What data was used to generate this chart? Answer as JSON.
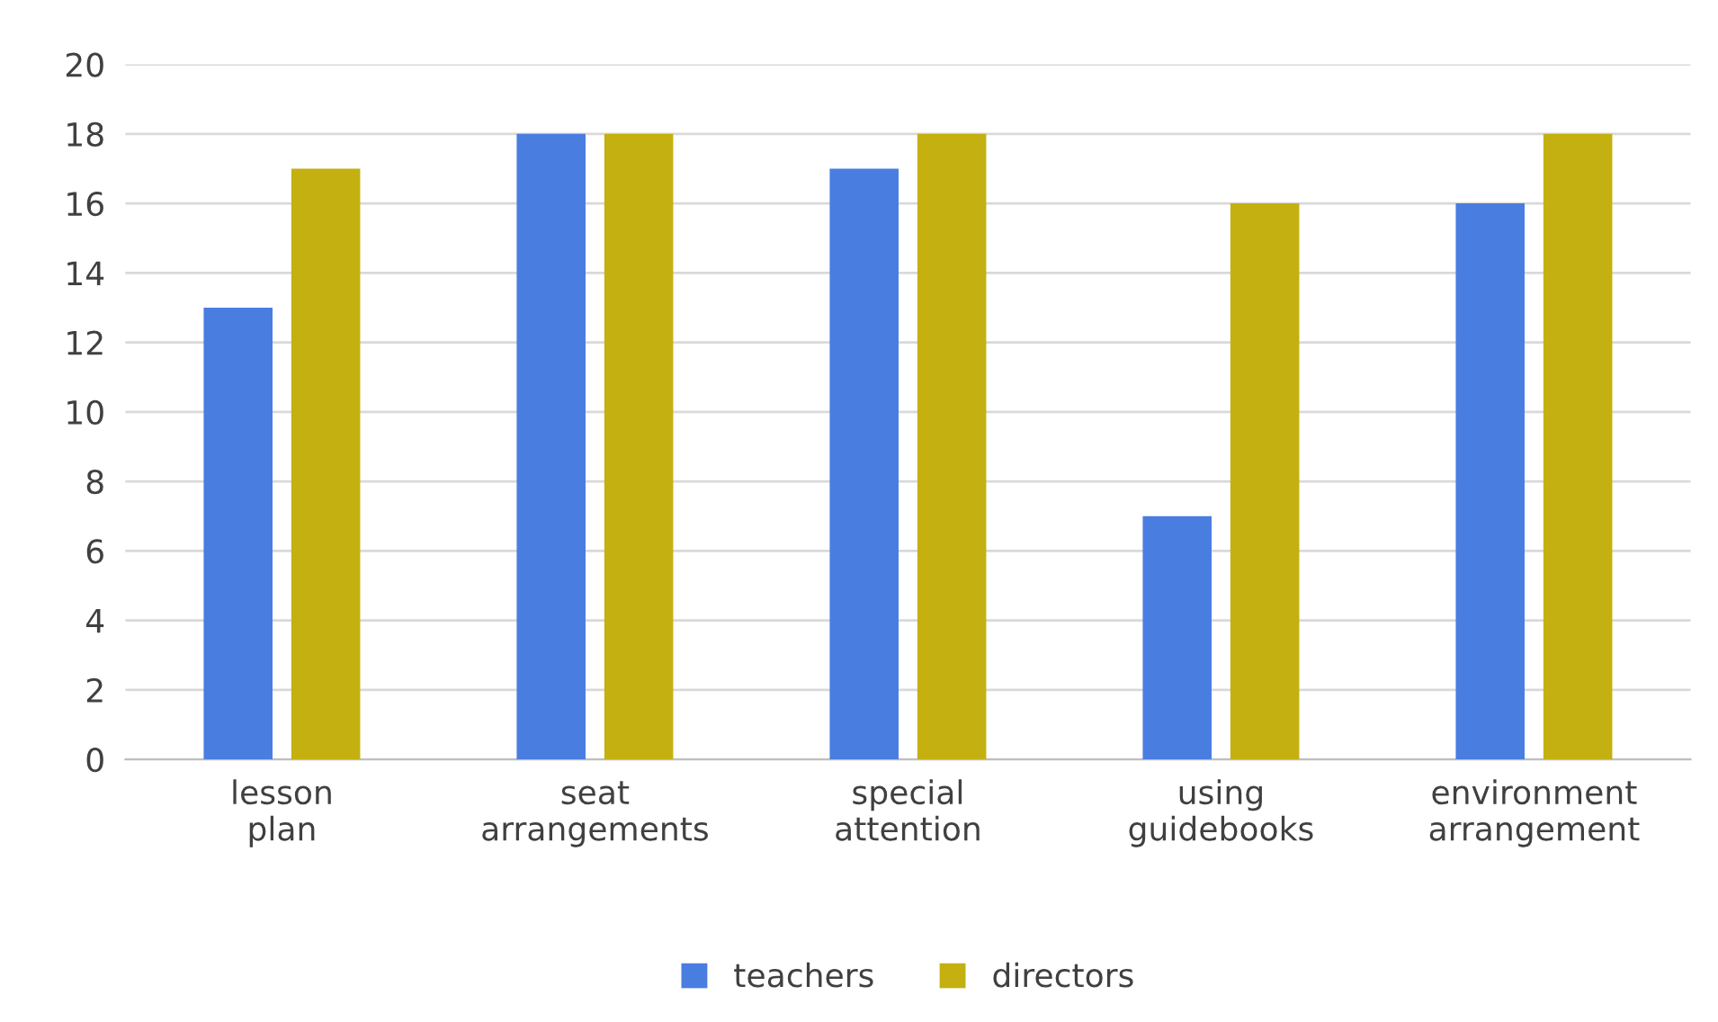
{
  "chart_data": {
    "type": "bar",
    "categories": [
      "lesson\nplan",
      "seat\narrangements",
      "special\nattention",
      "using\nguidebooks",
      "environment\narrangement"
    ],
    "series": [
      {
        "name": "teachers",
        "color": "#4a7de0",
        "values": [
          13,
          18,
          17,
          7,
          16
        ]
      },
      {
        "name": "directors",
        "color": "#c4b010",
        "values": [
          17,
          18,
          18,
          16,
          18
        ]
      }
    ],
    "ylim": [
      0,
      20
    ],
    "yticks": [
      0,
      2,
      4,
      6,
      8,
      10,
      12,
      14,
      16,
      18,
      20
    ],
    "grid": "y",
    "legend": "bottom"
  }
}
